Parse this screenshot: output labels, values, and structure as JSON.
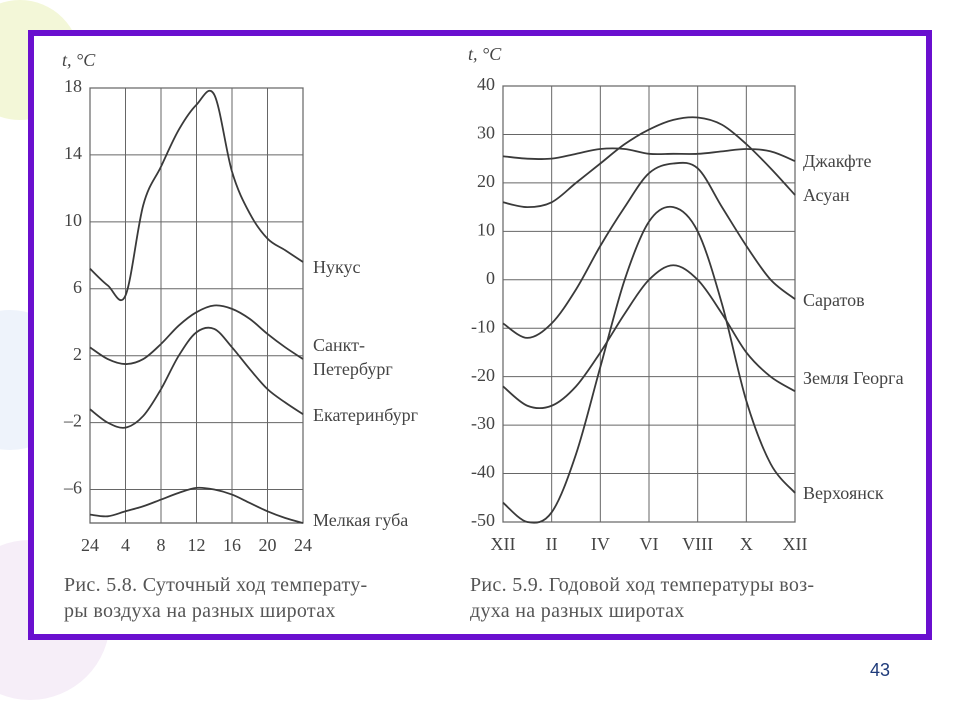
{
  "chart_data": [
    {
      "type": "line",
      "ylabel": "t, °C",
      "caption_lines": [
        "Рис. 5.8. Суточный ход температу-",
        "ры воздуха на разных широтах"
      ],
      "x": [
        0,
        2,
        4,
        6,
        8,
        10,
        12,
        14,
        16,
        18,
        20,
        22,
        24
      ],
      "xlim": [
        0,
        24
      ],
      "xticks": [
        {
          "value": 0,
          "label": "24"
        },
        4,
        8,
        12,
        16,
        20,
        24
      ],
      "ylim": [
        -8,
        18
      ],
      "yticks": [
        {
          "value": -6,
          "label": "–6"
        },
        {
          "value": -2,
          "label": "–2"
        },
        2,
        6,
        10,
        14,
        18
      ],
      "grid": true,
      "series": [
        {
          "name": "Нукус",
          "color": "#3a3a3a",
          "values": [
            7.2,
            6.2,
            5.6,
            11.0,
            13.3,
            15.5,
            17.0,
            17.6,
            13.0,
            10.5,
            9.0,
            8.3,
            7.6
          ]
        },
        {
          "name": "Санкт-Петербург",
          "color": "#3a3a3a",
          "values": [
            2.5,
            1.8,
            1.5,
            1.8,
            2.7,
            3.8,
            4.6,
            5.0,
            4.8,
            4.2,
            3.3,
            2.5,
            1.8
          ]
        },
        {
          "name": "Екатеринбург",
          "color": "#3a3a3a",
          "values": [
            -1.2,
            -2.0,
            -2.3,
            -1.6,
            0.0,
            2.0,
            3.4,
            3.6,
            2.5,
            1.2,
            0.0,
            -0.8,
            -1.5
          ]
        },
        {
          "name": "Мелкая губа",
          "color": "#3a3a3a",
          "values": [
            -7.5,
            -7.6,
            -7.3,
            -7.0,
            -6.6,
            -6.2,
            -5.9,
            -6.0,
            -6.3,
            -6.8,
            -7.3,
            -7.7,
            -8.0
          ]
        }
      ]
    },
    {
      "type": "line",
      "ylabel": "t, °C",
      "caption_lines": [
        "Рис. 5.9. Годовой ход температуры воз-",
        "духа на разных широтах"
      ],
      "x": [
        0,
        1,
        2,
        3,
        4,
        5,
        6,
        7,
        8,
        9,
        10,
        11,
        12
      ],
      "xlim": [
        0,
        12
      ],
      "xticks": [
        {
          "value": 0,
          "label": "XII"
        },
        {
          "value": 2,
          "label": "II"
        },
        {
          "value": 4,
          "label": "IV"
        },
        {
          "value": 6,
          "label": "VI"
        },
        {
          "value": 8,
          "label": "VIII"
        },
        {
          "value": 10,
          "label": "X"
        },
        {
          "value": 12,
          "label": "XII"
        }
      ],
      "ylim": [
        -50,
        40
      ],
      "yticks": [
        -50,
        -40,
        -30,
        -20,
        -10,
        0,
        10,
        20,
        30,
        40
      ],
      "grid": true,
      "series": [
        {
          "name": "Джакфте",
          "color": "#3a3a3a",
          "values": [
            25.5,
            25,
            25,
            26,
            27,
            27,
            26,
            26,
            26,
            26.5,
            27,
            26.5,
            24.5
          ]
        },
        {
          "name": "Асуан",
          "color": "#3a3a3a",
          "values": [
            16,
            15,
            16,
            20,
            24,
            28,
            31,
            33,
            33.5,
            32,
            28,
            23,
            17.5
          ]
        },
        {
          "name": "Саратов",
          "color": "#3a3a3a",
          "values": [
            -9,
            -12,
            -9,
            -2,
            7,
            15,
            22,
            24,
            23,
            15,
            7,
            0,
            -4
          ]
        },
        {
          "name": "Земля Георга",
          "color": "#3a3a3a",
          "values": [
            -22,
            -26,
            -26,
            -22,
            -15,
            -7,
            0,
            3,
            0,
            -7,
            -15,
            -20,
            -23
          ]
        },
        {
          "name": "Верхоянск",
          "color": "#3a3a3a",
          "values": [
            -46,
            -50,
            -48,
            -36,
            -18,
            0,
            12,
            15,
            10,
            -5,
            -25,
            -38,
            -44
          ]
        }
      ]
    }
  ],
  "slide_number": "43"
}
